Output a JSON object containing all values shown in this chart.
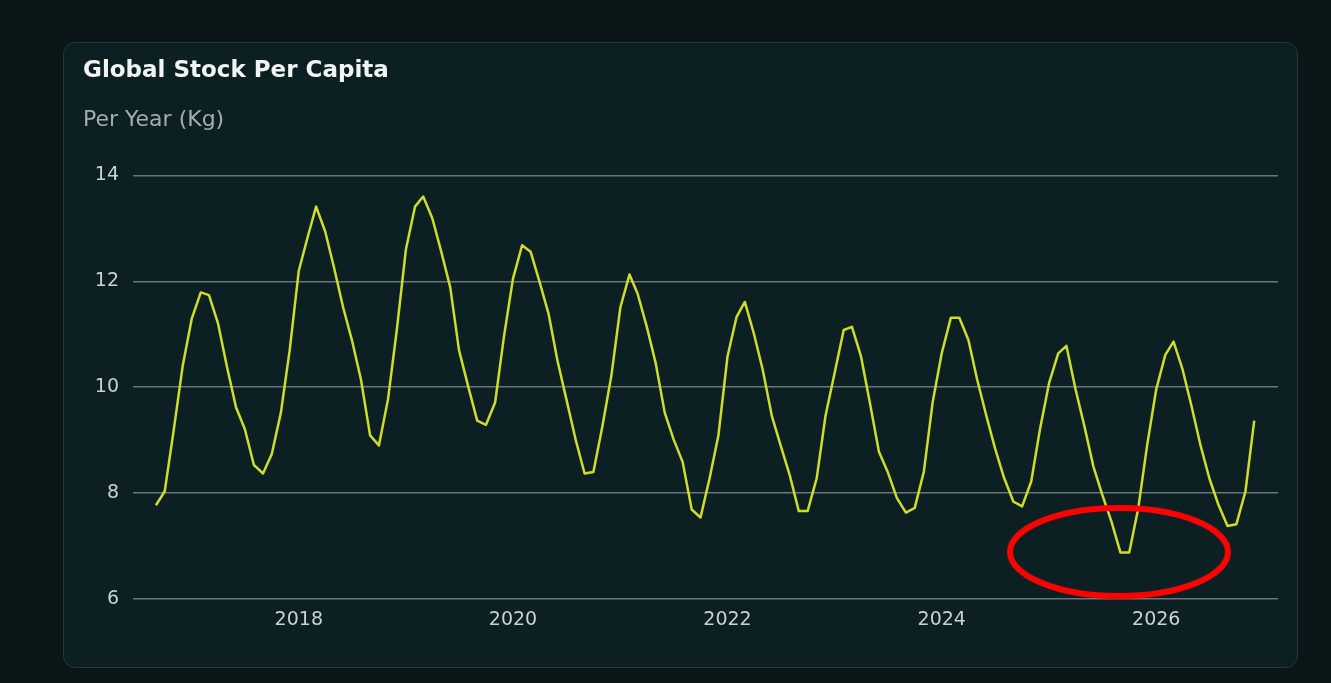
{
  "chart_data": {
    "type": "line",
    "title": "Global Stock Per Capita",
    "ylabel": "Per Year (Kg)",
    "x": [
      "2016-09",
      "2016-10",
      "2016-11",
      "2016-12",
      "2017-01",
      "2017-02",
      "2017-03",
      "2017-04",
      "2017-05",
      "2017-06",
      "2017-07",
      "2017-08",
      "2017-09",
      "2017-10",
      "2017-11",
      "2017-12",
      "2018-01",
      "2018-02",
      "2018-03",
      "2018-04",
      "2018-05",
      "2018-06",
      "2018-07",
      "2018-08",
      "2018-09",
      "2018-10",
      "2018-11",
      "2018-12",
      "2019-01",
      "2019-02",
      "2019-03",
      "2019-04",
      "2019-05",
      "2019-06",
      "2019-07",
      "2019-08",
      "2019-09",
      "2019-10",
      "2019-11",
      "2019-12",
      "2020-01",
      "2020-02",
      "2020-03",
      "2020-04",
      "2020-05",
      "2020-06",
      "2020-07",
      "2020-08",
      "2020-09",
      "2020-10",
      "2020-11",
      "2020-12",
      "2021-01",
      "2021-02",
      "2021-03",
      "2021-04",
      "2021-05",
      "2021-06",
      "2021-07",
      "2021-08",
      "2021-09",
      "2021-10",
      "2021-11",
      "2021-12",
      "2022-01",
      "2022-02",
      "2022-03",
      "2022-04",
      "2022-05",
      "2022-06",
      "2022-07",
      "2022-08",
      "2022-09",
      "2022-10",
      "2022-11",
      "2022-12",
      "2023-01",
      "2023-02",
      "2023-03",
      "2023-04",
      "2023-05",
      "2023-06",
      "2023-07",
      "2023-08",
      "2023-09",
      "2023-10",
      "2023-11",
      "2023-12",
      "2024-01",
      "2024-02",
      "2024-03",
      "2024-04",
      "2024-05",
      "2024-06",
      "2024-07",
      "2024-08",
      "2024-09",
      "2024-10",
      "2024-11",
      "2024-12",
      "2025-01",
      "2025-02",
      "2025-03",
      "2025-04",
      "2025-05",
      "2025-06",
      "2025-07",
      "2025-08",
      "2025-09",
      "2025-10",
      "2025-11",
      "2025-12",
      "2026-01",
      "2026-02",
      "2026-03",
      "2026-04",
      "2026-05",
      "2026-06",
      "2026-07",
      "2026-08",
      "2026-09",
      "2026-10",
      "2026-11",
      "2026-12"
    ],
    "xlim": [
      "2016-06-15",
      "2027-02-20"
    ],
    "xticks": [
      "2018",
      "2020",
      "2022",
      "2024",
      "2026"
    ],
    "ylim": [
      6,
      14
    ],
    "yticks": [
      6,
      8,
      10,
      12,
      14
    ],
    "grid": "y",
    "legend": false,
    "marker": "none",
    "line_style": "solid",
    "series": [
      {
        "color": "#cfdc2b",
        "values": [
          7.77,
          8.03,
          9.2,
          10.39,
          11.29,
          11.79,
          11.74,
          11.2,
          10.39,
          9.62,
          9.21,
          8.53,
          8.37,
          8.74,
          9.52,
          10.7,
          12.2,
          12.85,
          13.41,
          12.94,
          12.26,
          11.51,
          10.89,
          10.14,
          9.09,
          8.9,
          9.77,
          11.08,
          12.6,
          13.41,
          13.6,
          13.19,
          12.57,
          11.89,
          10.7,
          10.02,
          9.37,
          9.29,
          9.71,
          10.95,
          12.05,
          12.68,
          12.56,
          11.98,
          11.39,
          10.49,
          9.77,
          9.02,
          8.37,
          8.4,
          9.27,
          10.21,
          11.51,
          12.13,
          11.76,
          11.14,
          10.46,
          9.52,
          9.02,
          8.59,
          7.69,
          7.54,
          8.28,
          9.09,
          10.58,
          11.33,
          11.61,
          11.01,
          10.33,
          9.46,
          8.9,
          8.34,
          7.66,
          7.66,
          8.28,
          9.46,
          10.27,
          11.08,
          11.14,
          10.58,
          9.71,
          8.78,
          8.4,
          7.91,
          7.63,
          7.72,
          8.4,
          9.71,
          10.64,
          11.31,
          11.31,
          10.89,
          10.14,
          9.46,
          8.84,
          8.28,
          7.84,
          7.75,
          8.22,
          9.21,
          10.08,
          10.64,
          10.78,
          9.96,
          9.27,
          8.5,
          7.97,
          7.47,
          6.88,
          6.88,
          7.72,
          8.9,
          9.96,
          10.61,
          10.86,
          10.33,
          9.65,
          8.9,
          8.28,
          7.78,
          7.38,
          7.41,
          8.03,
          9.37
        ]
      }
    ]
  }
}
